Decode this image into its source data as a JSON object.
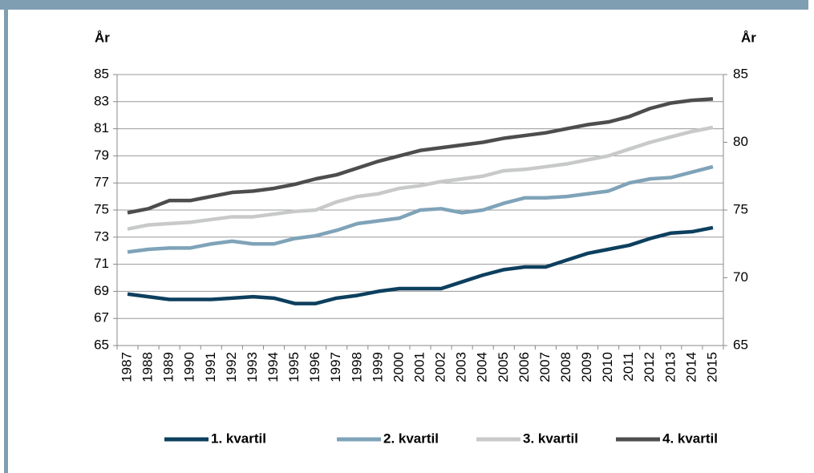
{
  "chart_data": {
    "type": "line",
    "y_label": "År",
    "y2_label": "År",
    "categories": [
      "1987",
      "1988",
      "1989",
      "1990",
      "1991",
      "1992",
      "1993",
      "1994",
      "1995",
      "1996",
      "1997",
      "1998",
      "1999",
      "2000",
      "2001",
      "2002",
      "2003",
      "2004",
      "2005",
      "2006",
      "2007",
      "2008",
      "2009",
      "2010",
      "2011",
      "2012",
      "2013",
      "2014",
      "2015"
    ],
    "series": [
      {
        "name": "1. kvartil",
        "color": "#0d3f5e",
        "values": [
          68.8,
          68.6,
          68.4,
          68.4,
          68.4,
          68.5,
          68.6,
          68.5,
          68.1,
          68.1,
          68.5,
          68.7,
          69.0,
          69.2,
          69.2,
          69.2,
          69.7,
          70.2,
          70.6,
          70.8,
          70.8,
          71.3,
          71.8,
          72.1,
          72.4,
          72.9,
          73.3,
          73.4,
          73.7
        ]
      },
      {
        "name": "2. kvartil",
        "color": "#7fa3b8",
        "values": [
          71.9,
          72.1,
          72.2,
          72.2,
          72.5,
          72.7,
          72.5,
          72.5,
          72.9,
          73.1,
          73.5,
          74.0,
          74.2,
          74.4,
          75.0,
          75.1,
          74.8,
          75.0,
          75.5,
          75.9,
          75.9,
          76.0,
          76.2,
          76.4,
          77.0,
          77.3,
          77.4,
          77.8,
          78.2
        ]
      },
      {
        "name": "3. kvartil",
        "color": "#c8c9c9",
        "values": [
          73.6,
          73.9,
          74.0,
          74.1,
          74.3,
          74.5,
          74.5,
          74.7,
          74.9,
          75.0,
          75.6,
          76.0,
          76.2,
          76.6,
          76.8,
          77.1,
          77.3,
          77.5,
          77.9,
          78.0,
          78.2,
          78.4,
          78.7,
          79.0,
          79.5,
          80.0,
          80.4,
          80.8,
          81.1
        ]
      },
      {
        "name": "4. kvartil",
        "color": "#4d4d4f",
        "values": [
          74.8,
          75.1,
          75.7,
          75.7,
          76.0,
          76.3,
          76.4,
          76.6,
          76.9,
          77.3,
          77.6,
          78.1,
          78.6,
          79.0,
          79.4,
          79.6,
          79.8,
          80.0,
          80.3,
          80.5,
          80.7,
          81.0,
          81.3,
          81.5,
          81.9,
          82.5,
          82.9,
          83.1,
          83.2
        ]
      }
    ],
    "ylim": [
      65,
      85
    ],
    "yticks": [
      65,
      67,
      69,
      71,
      73,
      75,
      77,
      79,
      81,
      83,
      85
    ],
    "y2lim": [
      65,
      85
    ],
    "y2ticks": [
      65,
      70,
      75,
      80,
      85
    ],
    "grid": true,
    "legend": "bottom"
  }
}
